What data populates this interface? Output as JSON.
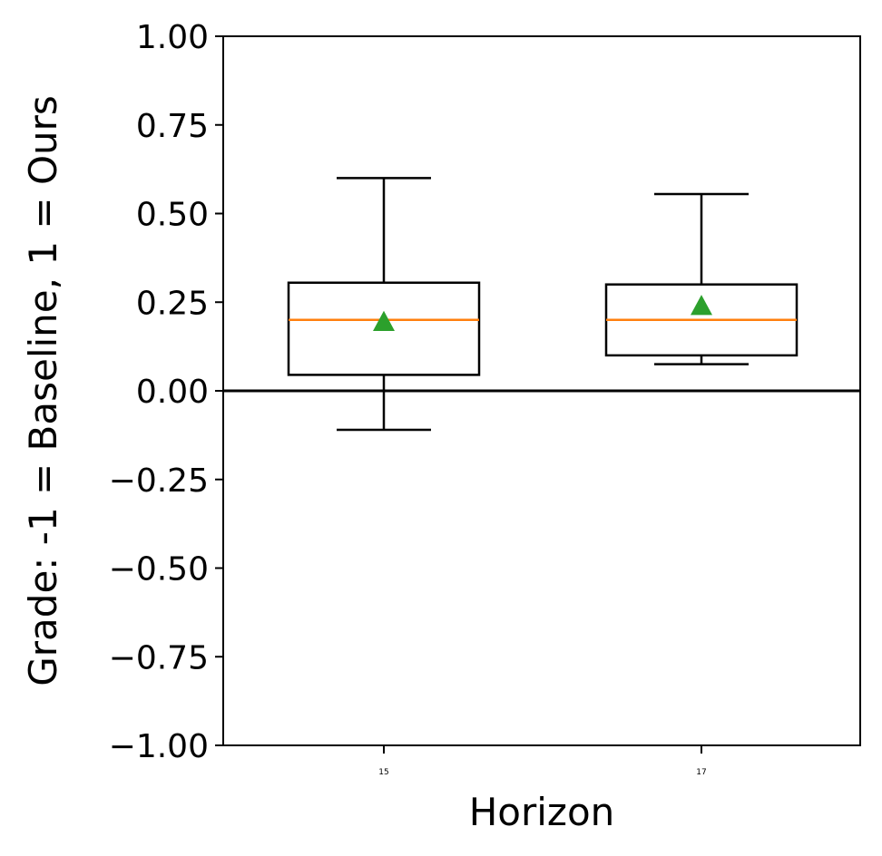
{
  "chart_data": {
    "type": "box",
    "title": "",
    "xlabel": "Horizon",
    "ylabel": "Grade: -1 = Baseline,  1 = Ours",
    "ylim": [
      -1.0,
      1.0
    ],
    "yticks": [
      "1.00",
      "0.75",
      "0.50",
      "0.25",
      "0.00",
      "−0.25",
      "−0.50",
      "−0.75",
      "−1.00"
    ],
    "ytick_values": [
      1.0,
      0.75,
      0.5,
      0.25,
      0.0,
      -0.25,
      -0.5,
      -0.75,
      -1.0
    ],
    "categories": [
      "15",
      "17"
    ],
    "boxes": [
      {
        "category": "15",
        "whisker_low": -0.11,
        "q1": 0.045,
        "median": 0.2,
        "q3": 0.305,
        "whisker_high": 0.6,
        "mean": 0.195
      },
      {
        "category": "17",
        "whisker_low": 0.075,
        "q1": 0.1,
        "median": 0.2,
        "q3": 0.3,
        "whisker_high": 0.555,
        "mean": 0.24
      }
    ],
    "reference_line_y": 0.0,
    "grid": false,
    "colors": {
      "median": "#ff7f0e",
      "mean": "#2ca02c",
      "box": "#000000"
    }
  }
}
